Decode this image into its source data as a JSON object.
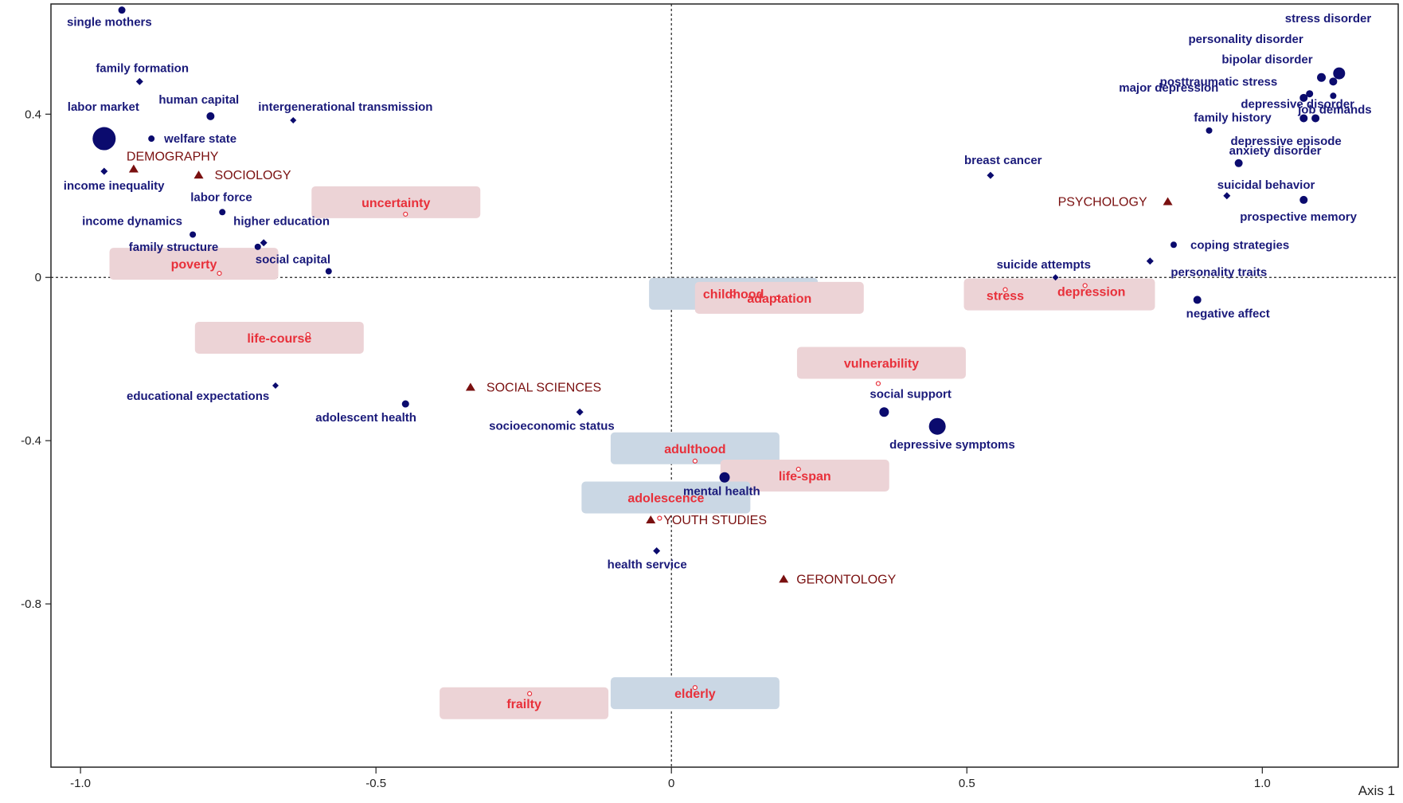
{
  "colors": {
    "term": "#0b0b6e",
    "field": "#7a1010",
    "supplementary_text": "#e8303a",
    "supplementary_marker": "#e8303a",
    "box_pink": "#ecd3d6",
    "box_blue": "#cad7e4",
    "axis": "#222222"
  },
  "chart_data": {
    "type": "scatter",
    "axes": {
      "x_label": "Axis 1",
      "x_range": [
        -1.05,
        1.23
      ],
      "y_range": [
        -1.2,
        0.67
      ],
      "x_ticks": [
        {
          "value": -1.0,
          "label": "-1.0"
        },
        {
          "value": -0.5,
          "label": "-0.5"
        },
        {
          "value": 0.0,
          "label": "0"
        },
        {
          "value": 0.5,
          "label": "0.5"
        },
        {
          "value": 1.0,
          "label": "1.0"
        }
      ],
      "y_ticks": [
        {
          "value": 0.4,
          "label": "0.4"
        },
        {
          "value": 0.0,
          "label": "0"
        },
        {
          "value": -0.4,
          "label": "-0.4"
        },
        {
          "value": -0.8,
          "label": "-0.8"
        }
      ],
      "reference_lines": "dotted lines at x=0 and y=0",
      "grid": false
    },
    "terms": [
      {
        "label": "single mothers",
        "x": -0.93,
        "y": 0.655,
        "size": 6
      },
      {
        "label": "family formation",
        "x": -0.9,
        "y": 0.48,
        "size": 4
      },
      {
        "label": "human capital",
        "x": -0.78,
        "y": 0.395,
        "size": 7
      },
      {
        "label": "intergenerational transmission",
        "x": -0.64,
        "y": 0.385,
        "size": 3
      },
      {
        "label": "labor market",
        "x": -0.96,
        "y": 0.34,
        "size": 26
      },
      {
        "label": "welfare state",
        "x": -0.88,
        "y": 0.34,
        "size": 5
      },
      {
        "label": "income inequality",
        "x": -0.96,
        "y": 0.26,
        "size": 4
      },
      {
        "label": "labor force",
        "x": -0.76,
        "y": 0.16,
        "size": 5
      },
      {
        "label": "income dynamics",
        "x": -0.81,
        "y": 0.105,
        "size": 5
      },
      {
        "label": "higher education",
        "x": -0.69,
        "y": 0.085,
        "size": 4
      },
      {
        "label": "family structure",
        "x": -0.7,
        "y": 0.075,
        "size": 5
      },
      {
        "label": "social capital",
        "x": -0.58,
        "y": 0.015,
        "size": 5
      },
      {
        "label": "educational expectations",
        "x": -0.67,
        "y": -0.265,
        "size": 3
      },
      {
        "label": "adolescent health",
        "x": -0.45,
        "y": -0.31,
        "size": 6
      },
      {
        "label": "socioeconomic status",
        "x": -0.155,
        "y": -0.33,
        "size": 4
      },
      {
        "label": "mental health",
        "x": 0.09,
        "y": -0.49,
        "size": 10
      },
      {
        "label": "health service",
        "x": -0.025,
        "y": -0.67,
        "size": 4
      },
      {
        "label": "breast cancer",
        "x": 0.54,
        "y": 0.25,
        "size": 4
      },
      {
        "label": "social support",
        "x": 0.36,
        "y": -0.33,
        "size": 9
      },
      {
        "label": "depressive symptoms",
        "x": 0.45,
        "y": -0.365,
        "size": 18
      },
      {
        "label": "suicide attempts",
        "x": 0.65,
        "y": 0.0,
        "size": 3
      },
      {
        "label": "stress disorder",
        "x": 1.13,
        "y": 0.5,
        "size": 12
      },
      {
        "label": "personality disorder",
        "x": 1.1,
        "y": 0.49,
        "size": 8
      },
      {
        "label": "bipolar disorder",
        "x": 1.12,
        "y": 0.48,
        "size": 7
      },
      {
        "label": "posttraumatic stress",
        "x": 1.08,
        "y": 0.45,
        "size": 6
      },
      {
        "label": "depressive disorder",
        "x": 1.12,
        "y": 0.445,
        "size": 5
      },
      {
        "label": "major depression",
        "x": 1.07,
        "y": 0.44,
        "size": 7
      },
      {
        "label": "job demands",
        "x": 1.09,
        "y": 0.39,
        "size": 7
      },
      {
        "label": "family history",
        "x": 1.07,
        "y": 0.39,
        "size": 7
      },
      {
        "label": "depressive episode",
        "x": 0.91,
        "y": 0.36,
        "size": 5
      },
      {
        "label": "anxiety disorder",
        "x": 0.96,
        "y": 0.28,
        "size": 7
      },
      {
        "label": "suicidal behavior",
        "x": 0.94,
        "y": 0.2,
        "size": 4
      },
      {
        "label": "prospective memory",
        "x": 1.07,
        "y": 0.19,
        "size": 7
      },
      {
        "label": "coping strategies",
        "x": 0.85,
        "y": 0.08,
        "size": 5
      },
      {
        "label": "personality traits",
        "x": 0.81,
        "y": 0.04,
        "size": 4
      },
      {
        "label": "negative affect",
        "x": 0.89,
        "y": -0.055,
        "size": 7
      }
    ],
    "fields": [
      {
        "label": "DEMOGRAPHY",
        "x": -0.91,
        "y": 0.265
      },
      {
        "label": "SOCIOLOGY",
        "x": -0.8,
        "y": 0.25
      },
      {
        "label": "PSYCHOLOGY",
        "x": 0.84,
        "y": 0.185
      },
      {
        "label": "SOCIAL SCIENCES",
        "x": -0.34,
        "y": -0.27
      },
      {
        "label": "YOUTH STUDIES",
        "x": -0.035,
        "y": -0.595
      },
      {
        "label": "GERONTOLOGY",
        "x": 0.19,
        "y": -0.74
      }
    ],
    "supplementary": [
      {
        "label": "uncertainty",
        "x": -0.45,
        "y": 0.155,
        "box": "pink"
      },
      {
        "label": "poverty",
        "x": -0.765,
        "y": 0.01,
        "box": "pink"
      },
      {
        "label": "childhood",
        "x": 0.105,
        "y": -0.04,
        "box": "blue"
      },
      {
        "label": "adaptation",
        "x": 0.18,
        "y": -0.05,
        "box": "pink"
      },
      {
        "label": "life-course",
        "x": -0.615,
        "y": -0.14,
        "box": "pink"
      },
      {
        "label": "stress",
        "x": 0.565,
        "y": -0.03,
        "box": "pink"
      },
      {
        "label": "depression",
        "x": 0.7,
        "y": -0.02,
        "box": "pink"
      },
      {
        "label": "vulnerability",
        "x": 0.35,
        "y": -0.26,
        "box": "pink"
      },
      {
        "label": "adulthood",
        "x": 0.04,
        "y": -0.45,
        "box": "blue"
      },
      {
        "label": "life-span",
        "x": 0.215,
        "y": -0.47,
        "box": "pink"
      },
      {
        "label": "adolescence",
        "x": -0.02,
        "y": -0.59,
        "box": "blue"
      },
      {
        "label": "frailty",
        "x": -0.24,
        "y": -1.02,
        "box": "pink"
      },
      {
        "label": "elderly",
        "x": 0.04,
        "y": -1.005,
        "box": "blue"
      }
    ]
  }
}
